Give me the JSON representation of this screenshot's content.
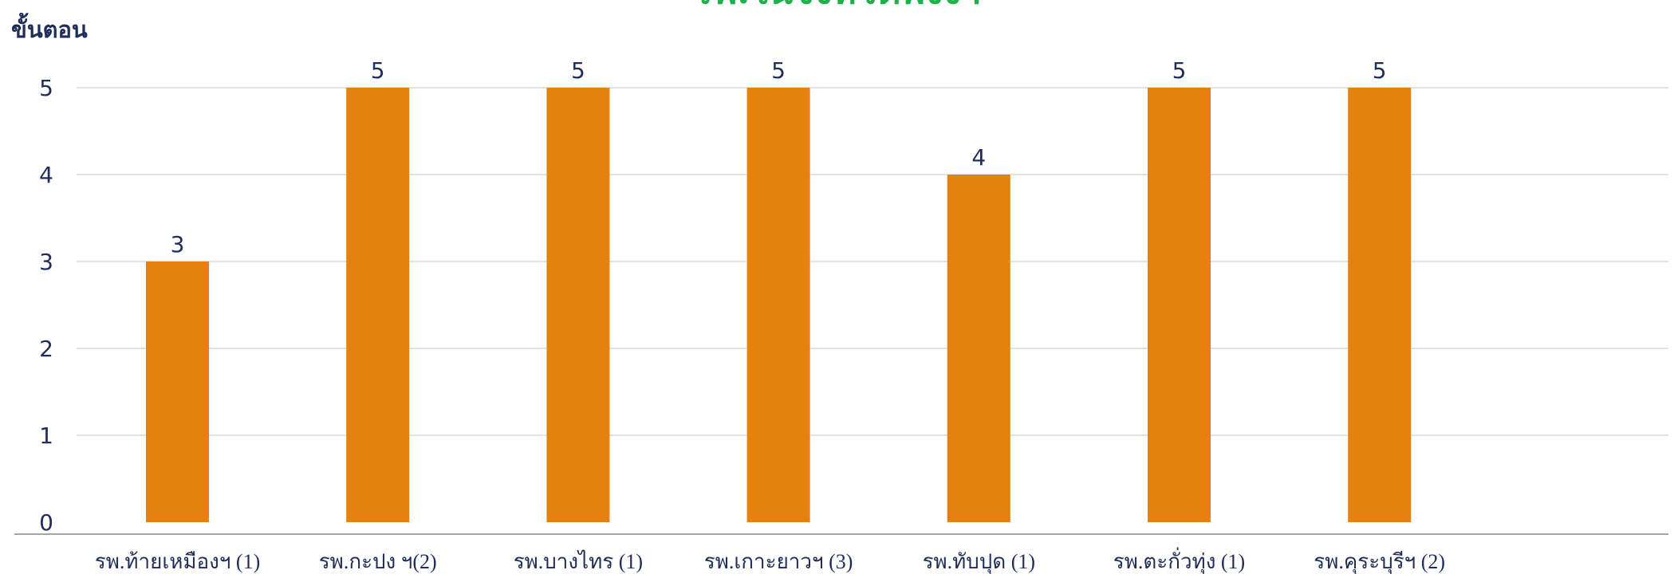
{
  "chart_data": {
    "type": "bar",
    "title": "รพ.ในจังหวัดพังงา",
    "ylabel": "ขั้นตอน",
    "xlabel": "",
    "categories": [
      "รพ.ท้ายเหมืองฯ (1)",
      "รพ.กะปง ฯ(2)",
      "รพ.บางไทร (1)",
      "รพ.เกาะยาวฯ (3)",
      "รพ.ทับปุด (1)",
      "รพ.ตะกั่วทุ่ง (1)",
      "รพ.คุระบุรีฯ (2)"
    ],
    "values": [
      3,
      5,
      5,
      5,
      4,
      5,
      5
    ],
    "ylim": [
      0,
      5
    ],
    "yticks": [
      0,
      1,
      2,
      3,
      4,
      5
    ],
    "grid": true,
    "legend": "none",
    "bar_color": "#e5820f",
    "title_color": "#1fb04b",
    "text_color": "#1f2d5a",
    "grid_color": "#d9d9d9",
    "axis_color": "#a6a6a6"
  }
}
